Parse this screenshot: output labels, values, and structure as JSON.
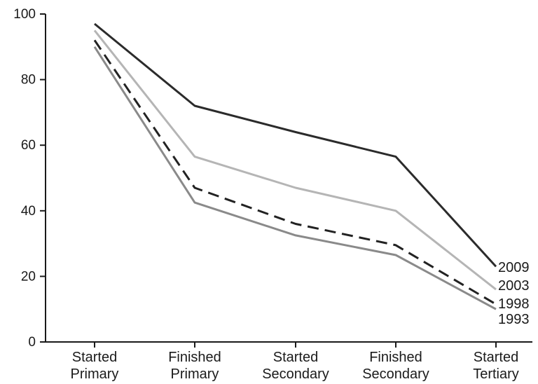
{
  "chart_data": {
    "type": "line",
    "categories": [
      [
        "Started",
        "Primary"
      ],
      [
        "Finished",
        "Primary"
      ],
      [
        "Started",
        "Secondary"
      ],
      [
        "Finished",
        "Secondary"
      ],
      [
        "Started",
        "Tertiary"
      ]
    ],
    "ylim": [
      0,
      100
    ],
    "yticks": [
      0,
      20,
      40,
      60,
      80,
      100
    ],
    "grid": false,
    "legend": "end-of-line labels",
    "series": [
      {
        "name": "2009",
        "values": [
          97,
          72,
          64,
          56.5,
          23
        ],
        "color": "#2b2b2b",
        "dash": "solid"
      },
      {
        "name": "2003",
        "values": [
          95,
          56.5,
          47,
          40,
          16
        ],
        "color": "#b5b5b5",
        "dash": "solid"
      },
      {
        "name": "1998",
        "values": [
          92,
          47,
          36,
          29.5,
          11.5
        ],
        "color": "#222222",
        "dash": "dashed"
      },
      {
        "name": "1993",
        "values": [
          90,
          42.5,
          32.5,
          26.5,
          10
        ],
        "color": "#8a8a8a",
        "dash": "solid"
      }
    ]
  }
}
